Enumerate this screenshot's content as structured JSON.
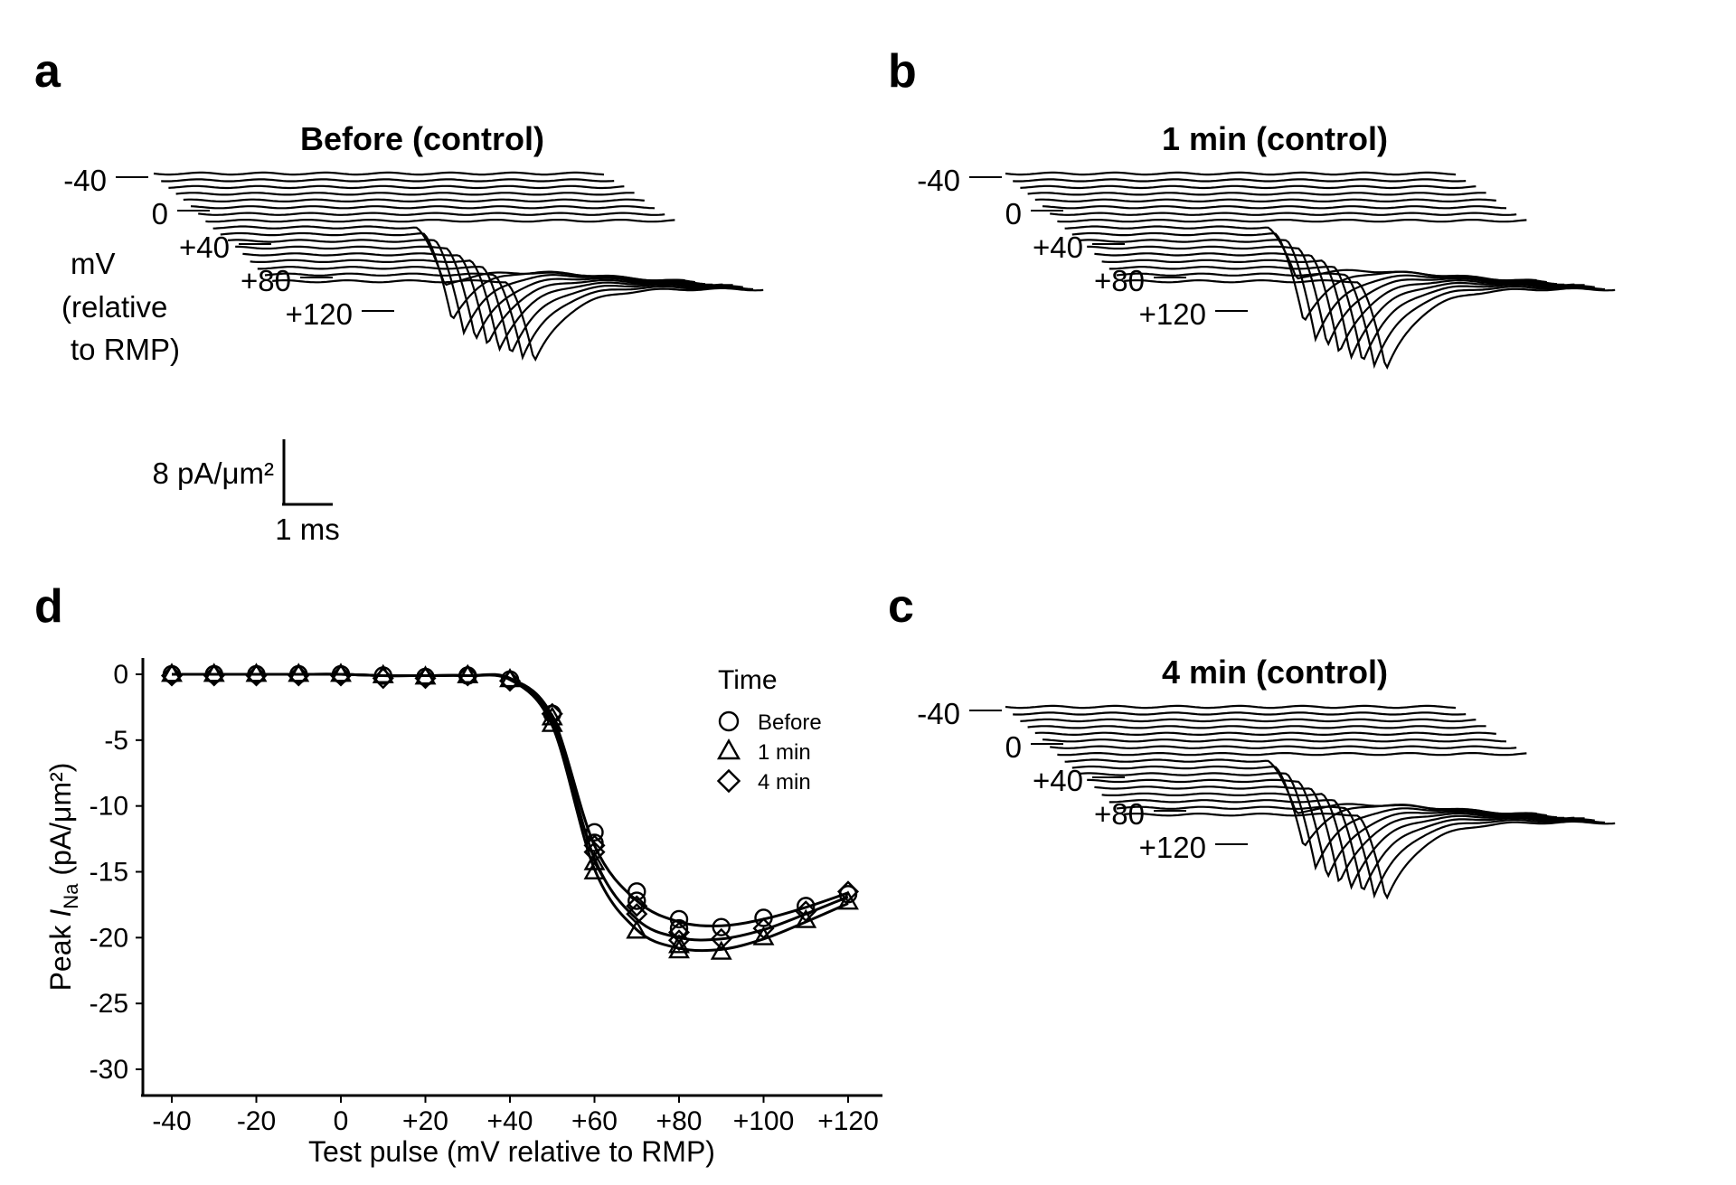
{
  "panels": {
    "a": {
      "label": "a",
      "title": "Before (control)"
    },
    "b": {
      "label": "b",
      "title": "1 min (control)"
    },
    "c": {
      "label": "c",
      "title": "4 min (control)"
    },
    "d": {
      "label": "d"
    }
  },
  "voltage_labels": [
    "-40",
    "0",
    "+40",
    "+80",
    "+120"
  ],
  "voltage_unit": {
    "line1": "mV",
    "line2": "(relative",
    "line3": "to RMP)"
  },
  "scale_bar": {
    "current": "8 pA/μm²",
    "time": "1 ms"
  },
  "chart_data": {
    "type": "scatter",
    "xlabel": "Test pulse (mV relative to RMP)",
    "ylabel_prefix": "Peak ",
    "ylabel_var": "I",
    "ylabel_sub": "Na",
    "ylabel_suffix": " (pA/μm²)",
    "x_ticks": [
      "-40",
      "-20",
      "0",
      "+20",
      "+40",
      "+60",
      "+80",
      "+100",
      "+120"
    ],
    "y_ticks": [
      "0",
      "-5",
      "-10",
      "-15",
      "-20",
      "-25",
      "-30"
    ],
    "xlim": [
      -44,
      128
    ],
    "ylim": [
      -30.8,
      1.2
    ],
    "legend": {
      "title": "Time",
      "placement": "top-right"
    },
    "x": [
      -40,
      -30,
      -20,
      -10,
      0,
      10,
      20,
      30,
      40,
      50,
      60,
      70,
      80,
      90,
      100,
      110,
      120
    ],
    "series": [
      {
        "name": "Before",
        "marker": "circle",
        "values": [
          0,
          0,
          0,
          0,
          0,
          -0.1,
          -0.2,
          -0.1,
          -0.4,
          -3.0,
          -12.0,
          -16.5,
          -18.6,
          -19.2,
          -18.5,
          -17.6,
          -16.7
        ],
        "fit": [
          0,
          0,
          0,
          0,
          0,
          -0.1,
          -0.1,
          -0.1,
          -0.3,
          -3.2,
          -13.0,
          -17.2,
          -18.8,
          -19.1,
          -18.6,
          -17.7,
          -16.6
        ],
        "extra_points": [
          [
            60,
            -12.8
          ],
          [
            70,
            -17.2
          ],
          [
            80,
            -19.3
          ]
        ]
      },
      {
        "name": "1 min",
        "marker": "triangle",
        "values": [
          0,
          0,
          0,
          0,
          0,
          -0.1,
          -0.2,
          -0.1,
          -0.4,
          -3.8,
          -15.0,
          -19.5,
          -21.0,
          -21.1,
          -20.0,
          -18.7,
          -17.3
        ],
        "fit": [
          0,
          0,
          0,
          0,
          0,
          -0.1,
          -0.1,
          -0.1,
          -0.4,
          -3.9,
          -14.8,
          -19.4,
          -20.8,
          -20.9,
          -20.1,
          -18.8,
          -17.4
        ],
        "extra_points": [
          [
            50,
            -3.3
          ],
          [
            60,
            -14.3
          ],
          [
            80,
            -20.6
          ]
        ]
      },
      {
        "name": "4 min",
        "marker": "diamond",
        "values": [
          -0.1,
          -0.1,
          -0.1,
          -0.1,
          -0.1,
          -0.3,
          -0.3,
          -0.1,
          -0.5,
          -3.0,
          -13.5,
          -18.2,
          -20.2,
          -20.1,
          -19.3,
          -18.0,
          -16.5
        ],
        "fit": [
          0,
          0,
          0,
          0,
          0,
          -0.1,
          -0.1,
          -0.1,
          -0.4,
          -3.5,
          -14.0,
          -18.6,
          -20.0,
          -20.1,
          -19.4,
          -18.2,
          -16.9
        ],
        "extra_points": [
          [
            60,
            -13.0
          ],
          [
            70,
            -17.6
          ],
          [
            80,
            -19.6
          ]
        ]
      }
    ]
  },
  "traces": {
    "a": {
      "peaks_rel": [
        2.8,
        4.6,
        5.0,
        5.2,
        5.2,
        5.1,
        5.0,
        4.9
      ],
      "baseline_sag": 0.55,
      "ripple_count": 13
    },
    "b": {
      "peaks_rel": [
        2.4,
        4.7,
        5.4,
        5.6,
        5.7,
        5.6,
        5.5,
        5.4
      ],
      "baseline_sag": 0.55,
      "ripple_count": 13
    },
    "c": {
      "peaks_rel": [
        2.5,
        4.2,
        5.1,
        5.5,
        5.5,
        5.4,
        5.3,
        5.2
      ],
      "baseline_sag": 0.55,
      "ripple_count": 13
    }
  }
}
